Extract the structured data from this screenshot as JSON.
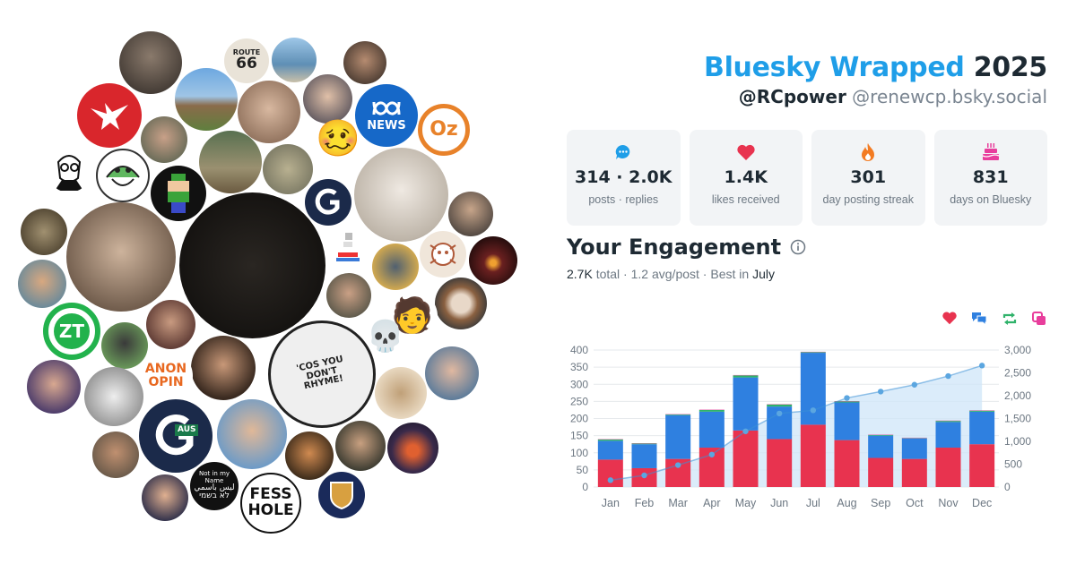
{
  "header": {
    "brand": "Bluesky Wrapped",
    "year": "2025",
    "display_handle": "@RCpower",
    "account_handle": "@renewcp.bsky.social"
  },
  "stats": [
    {
      "icon": "speech-bubble-icon",
      "value": "314 · 2.0K",
      "label": "posts · replies"
    },
    {
      "icon": "heart-icon",
      "value": "1.4K",
      "label": "likes received"
    },
    {
      "icon": "flame-icon",
      "value": "301",
      "label": "day posting streak"
    },
    {
      "icon": "cake-icon",
      "value": "831",
      "label": "days on Bluesky"
    }
  ],
  "engagement": {
    "title": "Your Engagement",
    "total_value": "2.7K",
    "total_word": "total",
    "sep1": " · ",
    "avg": "1.2 avg/post",
    "sep2": " · ",
    "best_prefix": "Best in",
    "best_month": "July"
  },
  "avatars": {
    "logo_texts": {
      "abc_top": "ABC",
      "abc_bottom": "NEWS",
      "oz": "Oz",
      "route_top": "ROUTE",
      "route_num": "66",
      "zt": "ZT",
      "anon_top": "ANON",
      "anon_bottom": "OPIN",
      "aus": "AUS",
      "fess_top": "FESS",
      "fess_bottom": "HOLE",
      "notname_line1": "Not in my Name",
      "notname_line2": "ليس باسمي",
      "notname_line3": "לא בשמי",
      "rhyme": "'COS YOU DON'T RHYME!"
    },
    "emoji": {
      "woozy": "🥴",
      "laptop": "👩‍💻",
      "skull": "💀",
      "person": "🧑"
    }
  },
  "chart_data": {
    "type": "bar",
    "stacked": true,
    "categories": [
      "Jan",
      "Feb",
      "Mar",
      "Apr",
      "May",
      "Jun",
      "Jul",
      "Aug",
      "Sep",
      "Oct",
      "Nov",
      "Dec"
    ],
    "series": [
      {
        "key": "likes",
        "values": [
          80,
          55,
          82,
          115,
          165,
          140,
          182,
          137,
          85,
          82,
          115,
          125
        ],
        "color": "#e8334f"
      },
      {
        "key": "replies",
        "values": [
          55,
          70,
          128,
          105,
          155,
          95,
          210,
          110,
          65,
          60,
          75,
          95
        ],
        "color": "#2f80e0"
      },
      {
        "key": "reposts",
        "values": [
          4,
          2,
          2,
          5,
          6,
          6,
          2,
          3,
          2,
          1,
          3,
          3
        ],
        "color": "#2fb26a"
      },
      {
        "key": "quotes",
        "values": [
          1,
          1,
          1,
          1,
          1,
          1,
          1,
          1,
          1,
          1,
          1,
          1
        ],
        "color": "#e83e9c"
      }
    ],
    "cumulative_line": {
      "values": [
        150,
        255,
        480,
        710,
        1220,
        1610,
        1680,
        1950,
        2090,
        2240,
        2430,
        2660
      ],
      "color": "#3b8fd6"
    },
    "ylim": [
      0,
      400
    ],
    "y_ticks": [
      "0",
      "50",
      "100",
      "150",
      "200",
      "250",
      "300",
      "350",
      "400"
    ],
    "y2lim": [
      0,
      3000
    ],
    "y2_ticks": [
      "0",
      "500",
      "1,000",
      "1,500",
      "2,000",
      "2,500",
      "3,000"
    ],
    "legend_position": "top-right",
    "legend_icons": [
      {
        "icon": "heart-icon",
        "color": "#e8334f"
      },
      {
        "icon": "reply-bubbles-icon",
        "color": "#2f80e0"
      },
      {
        "icon": "repost-icon",
        "color": "#2fb26a"
      },
      {
        "icon": "quote-icon",
        "color": "#e83e9c"
      }
    ],
    "grid": true
  }
}
